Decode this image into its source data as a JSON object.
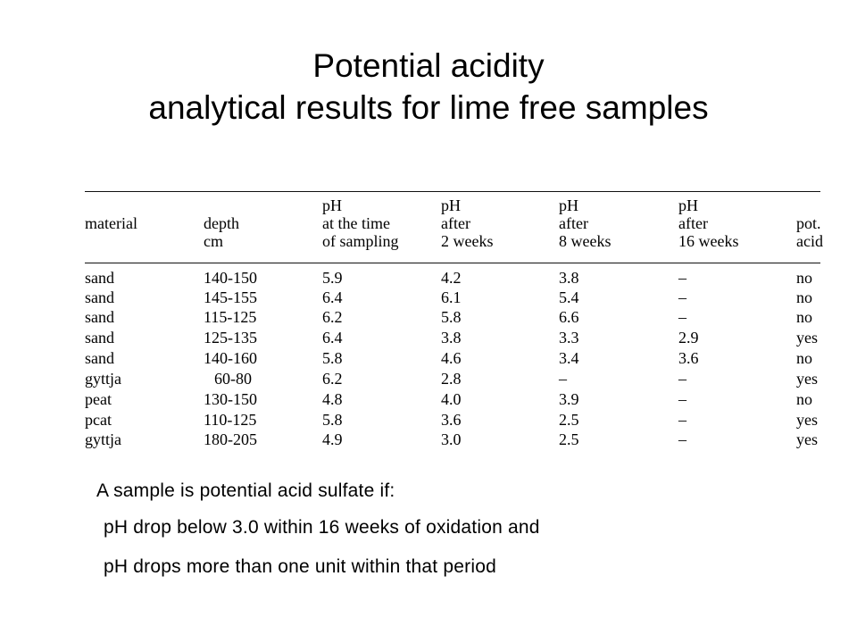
{
  "title": {
    "line1": "Potential acidity",
    "line2": "analytical results for lime free samples"
  },
  "table": {
    "headers": [
      {
        "lines": [
          "",
          "material",
          ""
        ]
      },
      {
        "lines": [
          "",
          "depth",
          "cm"
        ]
      },
      {
        "lines": [
          "pH",
          "at the time",
          "of sampling"
        ]
      },
      {
        "lines": [
          "pH",
          "after",
          "2 weeks"
        ]
      },
      {
        "lines": [
          "pH",
          "after",
          "8 weeks"
        ]
      },
      {
        "lines": [
          "pH",
          "after",
          "16 weeks"
        ]
      },
      {
        "lines": [
          "",
          "pot.",
          "acid"
        ]
      }
    ],
    "rows": [
      [
        "sand",
        "140-150",
        "5.9",
        "4.2",
        "3.8",
        "–",
        "no"
      ],
      [
        "sand",
        "145-155",
        "6.4",
        "6.1",
        "5.4",
        "–",
        "no"
      ],
      [
        "sand",
        "115-125",
        "6.2",
        "5.8",
        "6.6",
        "–",
        "no"
      ],
      [
        "sand",
        "125-135",
        "6.4",
        "3.8",
        "3.3",
        "2.9",
        "yes"
      ],
      [
        "sand",
        "140-160",
        "5.8",
        "4.6",
        "3.4",
        "3.6",
        "no"
      ],
      [
        "gyttja",
        "60-80",
        "6.2",
        "2.8",
        "–",
        "–",
        "yes"
      ],
      [
        "peat",
        "130-150",
        "4.8",
        "4.0",
        "3.9",
        "–",
        "no"
      ],
      [
        "pcat",
        "110-125",
        "5.8",
        "3.6",
        "2.5",
        "–",
        "yes"
      ],
      [
        "gyttja",
        "180-205",
        "4.9",
        "3.0",
        "2.5",
        "–",
        "yes"
      ]
    ]
  },
  "criteria": {
    "intro": "A sample is potential acid sulfate if:",
    "line1": "pH drop below 3.0 within 16 weeks of oxidation and",
    "line2": "pH drops more than one unit within that period"
  }
}
